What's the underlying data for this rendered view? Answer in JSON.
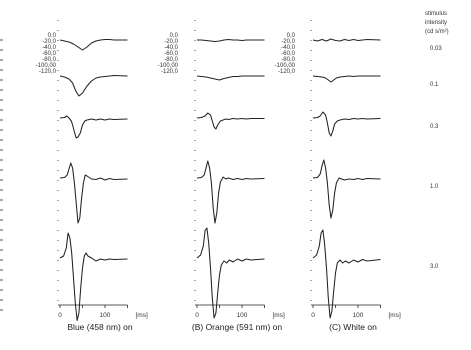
{
  "chart_data": {
    "type": "line",
    "title": "",
    "panels": [
      {
        "caption": "Blue (458 nm) on",
        "xlabel": "[ms]",
        "xticks": [
          "0",
          "100"
        ],
        "xlim": [
          0,
          150
        ],
        "ylabels": [
          "0,0",
          "-20,0",
          "-40,0",
          "-60,0",
          "-80,0",
          "-100,00",
          "-120,0"
        ]
      },
      {
        "caption": "(B) Orange (591 nm) on",
        "xlabel": "[ms]",
        "xticks": [
          "0",
          "100"
        ],
        "xlim": [
          0,
          150
        ],
        "ylabels": [
          "0,0",
          "-20,0",
          "-40,0",
          "-60,0",
          "-80,0",
          "-100,00",
          "-120,0"
        ]
      },
      {
        "caption": "(C) White on",
        "xlabel": "[ms]",
        "xticks": [
          "0",
          "100"
        ],
        "xlim": [
          0,
          150
        ],
        "ylabels": [
          "0,0",
          "-20,0",
          "-40,0",
          "-60,0",
          "-80,0",
          "-100,00",
          "-120,0"
        ]
      }
    ],
    "stimulus_legend": {
      "header": [
        "stimulus",
        "intensity",
        "(cd s/m²)"
      ],
      "levels": [
        "0.03",
        "0.1",
        "0.3",
        "1.0",
        "3.0"
      ]
    },
    "series": [
      {
        "name": "0.03",
        "panel": 0,
        "x": [
          0,
          10,
          20,
          30,
          40,
          50,
          60,
          70,
          80,
          90,
          100,
          110,
          120,
          130,
          150
        ],
        "y": [
          0,
          -2,
          -4,
          -8,
          -14,
          -20,
          -14,
          -6,
          -2,
          0,
          1,
          1,
          0,
          0,
          0
        ]
      },
      {
        "name": "0.1",
        "panel": 0,
        "x": [
          0,
          10,
          20,
          28,
          35,
          42,
          50,
          60,
          70,
          80,
          90,
          100,
          110,
          120,
          150
        ],
        "y": [
          0,
          -2,
          -6,
          -14,
          -30,
          -40,
          -34,
          -20,
          -10,
          -4,
          -2,
          -1,
          0,
          1,
          0
        ]
      },
      {
        "name": "0.3",
        "panel": 0,
        "x": [
          0,
          10,
          15,
          20,
          25,
          28,
          32,
          36,
          40,
          45,
          50,
          55,
          60,
          70,
          80,
          90,
          100,
          110,
          120,
          150
        ],
        "y": [
          0,
          1,
          4,
          0,
          -6,
          -14,
          -28,
          -40,
          -38,
          -30,
          -14,
          -6,
          -4,
          -2,
          -4,
          -2,
          -4,
          -2,
          -3,
          -2
        ]
      },
      {
        "name": "1.0",
        "panel": 0,
        "x": [
          0,
          10,
          16,
          20,
          24,
          28,
          32,
          36,
          40,
          44,
          48,
          52,
          56,
          60,
          70,
          80,
          90,
          100,
          110,
          120,
          150
        ],
        "y": [
          0,
          1,
          6,
          18,
          30,
          20,
          -10,
          -50,
          -90,
          -80,
          -40,
          -10,
          6,
          4,
          -2,
          -3,
          0,
          -4,
          -1,
          -3,
          -2
        ]
      },
      {
        "name": "3.0",
        "panel": 0,
        "x": [
          0,
          8,
          14,
          18,
          22,
          26,
          30,
          34,
          38,
          42,
          46,
          50,
          54,
          58,
          62,
          70,
          80,
          90,
          100,
          110,
          120,
          150
        ],
        "y": [
          0,
          4,
          20,
          50,
          40,
          10,
          -40,
          -90,
          -125,
          -110,
          -60,
          -20,
          4,
          10,
          4,
          0,
          -6,
          -2,
          -4,
          -2,
          -3,
          -2
        ]
      },
      {
        "name": "0.03",
        "panel": 1,
        "x": [
          0,
          10,
          20,
          30,
          40,
          50,
          60,
          70,
          80,
          90,
          100,
          110,
          120,
          150
        ],
        "y": [
          0,
          0,
          -1,
          -2,
          -3,
          -2,
          0,
          1,
          0,
          0,
          -1,
          0,
          0,
          0
        ]
      },
      {
        "name": "0.1",
        "panel": 1,
        "x": [
          0,
          10,
          20,
          30,
          40,
          50,
          60,
          70,
          80,
          90,
          100,
          110,
          120,
          150
        ],
        "y": [
          0,
          -1,
          -2,
          -4,
          -6,
          -8,
          -5,
          -3,
          -1,
          -1,
          0,
          0,
          0,
          0
        ]
      },
      {
        "name": "0.3",
        "panel": 1,
        "x": [
          0,
          10,
          18,
          24,
          30,
          34,
          38,
          42,
          46,
          52,
          58,
          64,
          70,
          80,
          90,
          100,
          110,
          120,
          150
        ],
        "y": [
          0,
          1,
          4,
          10,
          6,
          -6,
          -18,
          -22,
          -14,
          -6,
          -4,
          -2,
          -3,
          -1,
          -2,
          -1,
          -2,
          -1,
          -1
        ]
      },
      {
        "name": "1.0",
        "panel": 1,
        "x": [
          0,
          10,
          16,
          20,
          24,
          28,
          32,
          36,
          40,
          44,
          48,
          52,
          58,
          64,
          70,
          80,
          90,
          100,
          110,
          120,
          150
        ],
        "y": [
          0,
          1,
          6,
          20,
          34,
          20,
          -10,
          -60,
          -90,
          -70,
          -30,
          -8,
          2,
          -2,
          0,
          -3,
          -1,
          -3,
          -1,
          -2,
          -1
        ]
      },
      {
        "name": "3.0",
        "panel": 1,
        "x": [
          0,
          8,
          14,
          18,
          22,
          26,
          30,
          34,
          38,
          42,
          46,
          50,
          54,
          60,
          66,
          72,
          80,
          90,
          100,
          110,
          120,
          150
        ],
        "y": [
          0,
          6,
          24,
          55,
          60,
          30,
          -20,
          -80,
          -120,
          -110,
          -70,
          -34,
          -14,
          -6,
          -10,
          -4,
          -8,
          -2,
          -6,
          -2,
          -4,
          -2
        ]
      },
      {
        "name": "0.03",
        "panel": 2,
        "x": [
          0,
          10,
          20,
          30,
          40,
          50,
          60,
          70,
          80,
          90,
          100,
          110,
          120,
          150
        ],
        "y": [
          0,
          -2,
          1,
          -2,
          2,
          -1,
          -2,
          1,
          -1,
          1,
          -1,
          0,
          1,
          0
        ]
      },
      {
        "name": "0.1",
        "panel": 2,
        "x": [
          0,
          10,
          20,
          28,
          34,
          40,
          46,
          52,
          60,
          70,
          80,
          90,
          100,
          110,
          120,
          150
        ],
        "y": [
          0,
          -1,
          -2,
          -4,
          -8,
          -12,
          -8,
          -4,
          -2,
          -1,
          0,
          -1,
          0,
          0,
          0,
          0
        ]
      },
      {
        "name": "0.3",
        "panel": 2,
        "x": [
          0,
          10,
          16,
          22,
          28,
          32,
          36,
          40,
          44,
          48,
          54,
          60,
          70,
          80,
          90,
          100,
          110,
          120,
          150
        ],
        "y": [
          0,
          1,
          4,
          12,
          6,
          -10,
          -30,
          -36,
          -26,
          -12,
          -6,
          -4,
          -2,
          -3,
          -1,
          -2,
          -1,
          -2,
          -1
        ]
      },
      {
        "name": "1.0",
        "panel": 2,
        "x": [
          0,
          10,
          16,
          20,
          24,
          28,
          32,
          36,
          40,
          44,
          48,
          52,
          58,
          64,
          70,
          80,
          90,
          100,
          110,
          120,
          150
        ],
        "y": [
          0,
          1,
          8,
          24,
          36,
          20,
          -10,
          -54,
          -80,
          -64,
          -30,
          -10,
          0,
          -2,
          -4,
          -2,
          -3,
          -1,
          -3,
          -1,
          -2
        ]
      },
      {
        "name": "3.0",
        "panel": 2,
        "x": [
          0,
          8,
          14,
          18,
          22,
          26,
          30,
          34,
          38,
          42,
          46,
          50,
          54,
          60,
          66,
          72,
          80,
          90,
          100,
          110,
          120,
          150
        ],
        "y": [
          0,
          6,
          24,
          50,
          56,
          26,
          -20,
          -80,
          -120,
          -106,
          -66,
          -30,
          -10,
          -4,
          -10,
          -6,
          -10,
          -4,
          -8,
          -3,
          -6,
          -3
        ]
      }
    ]
  }
}
